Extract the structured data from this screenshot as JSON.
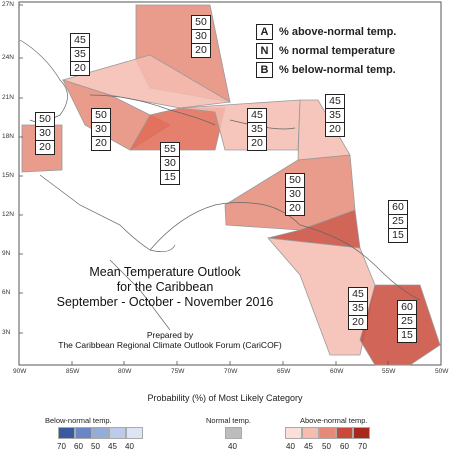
{
  "axes": {
    "lat_ticks": [
      "27N",
      "24N",
      "21N",
      "18N",
      "15N",
      "12N",
      "9N",
      "6N",
      "3N"
    ],
    "lon_ticks": [
      "90W",
      "85W",
      "80W",
      "75W",
      "70W",
      "65W",
      "60W",
      "55W",
      "50W"
    ]
  },
  "key": [
    {
      "letter": "A",
      "text": "% above-normal temp."
    },
    {
      "letter": "N",
      "text": "% normal temperature"
    },
    {
      "letter": "B",
      "text": "% below-normal temp."
    }
  ],
  "regions": [
    {
      "name": "bahamas-north",
      "above": "50",
      "normal": "30",
      "below": "20",
      "fill": "#e58a78"
    },
    {
      "name": "bahamas-west",
      "above": "45",
      "normal": "35",
      "below": "20",
      "fill": "#f5bcb0"
    },
    {
      "name": "cuba",
      "above": "50",
      "normal": "30",
      "below": "20",
      "fill": "#e58a78"
    },
    {
      "name": "belize",
      "above": "50",
      "normal": "30",
      "below": "20",
      "fill": "#e58a78"
    },
    {
      "name": "jamaica",
      "above": "55",
      "normal": "30",
      "below": "15",
      "fill": "#e06a55"
    },
    {
      "name": "hispaniola",
      "above": "45",
      "normal": "35",
      "below": "20",
      "fill": "#f5bcb0"
    },
    {
      "name": "leeward-islands",
      "above": "45",
      "normal": "35",
      "below": "20",
      "fill": "#f5bcb0"
    },
    {
      "name": "windward-islands",
      "above": "50",
      "normal": "30",
      "below": "20",
      "fill": "#e58a78"
    },
    {
      "name": "trinidad",
      "above": "60",
      "normal": "25",
      "below": "15",
      "fill": "#c94a3a"
    },
    {
      "name": "guyana",
      "above": "45",
      "normal": "35",
      "below": "20",
      "fill": "#f5bcb0"
    },
    {
      "name": "suriname",
      "above": "60",
      "normal": "25",
      "below": "15",
      "fill": "#c94a3a"
    }
  ],
  "title": {
    "line1": "Mean Temperature Outlook",
    "line2": "for the Caribbean",
    "line3": "September - October - November 2016"
  },
  "prepared": {
    "line1": "Prepared by",
    "line2": "The Caribbean Regional Climate Outlook Forum (CariCOF)"
  },
  "legend": {
    "title": "Probability (%) of Most Likely Category",
    "below": {
      "label": "Below-normal temp.",
      "ticks": [
        "70",
        "60",
        "50",
        "45",
        "40"
      ],
      "colors": [
        "#3a5aa0",
        "#6a86c4",
        "#94acd8",
        "#bccbe8",
        "#dde5f4"
      ]
    },
    "normal": {
      "label": "Normal temp.",
      "ticks": [
        "40"
      ],
      "colors": [
        "#bdbdbd"
      ]
    },
    "above": {
      "label": "Above-normal temp.",
      "ticks": [
        "40",
        "45",
        "50",
        "60",
        "70"
      ],
      "colors": [
        "#fbe0da",
        "#f5bcb0",
        "#e58a78",
        "#c94a3a",
        "#a8281c"
      ]
    }
  }
}
